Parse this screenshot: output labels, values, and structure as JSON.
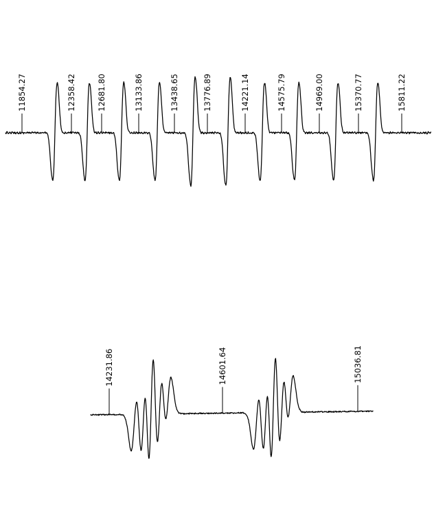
{
  "chart_data": [
    {
      "type": "line",
      "title": "",
      "xlabel": "",
      "ylabel": "",
      "grid": false,
      "legend": "none",
      "field_markers": [
        "11854.27",
        "12358.42",
        "12681.80",
        "13133.86",
        "13438.65",
        "13776.89",
        "14221.14",
        "14575.79",
        "14969.00",
        "15370.77",
        "15811.22"
      ],
      "line_count": 10,
      "series": [
        {
          "values": []
        }
      ]
    },
    {
      "type": "line",
      "title": "",
      "xlabel": "",
      "ylabel": "",
      "grid": false,
      "legend": "none",
      "field_markers": [
        "14231.86",
        "14601.64",
        "15036.81"
      ],
      "line_count": 2,
      "series": [
        {
          "values": []
        }
      ]
    }
  ],
  "colors": {
    "trace": "#000000",
    "background": "#ffffff"
  }
}
